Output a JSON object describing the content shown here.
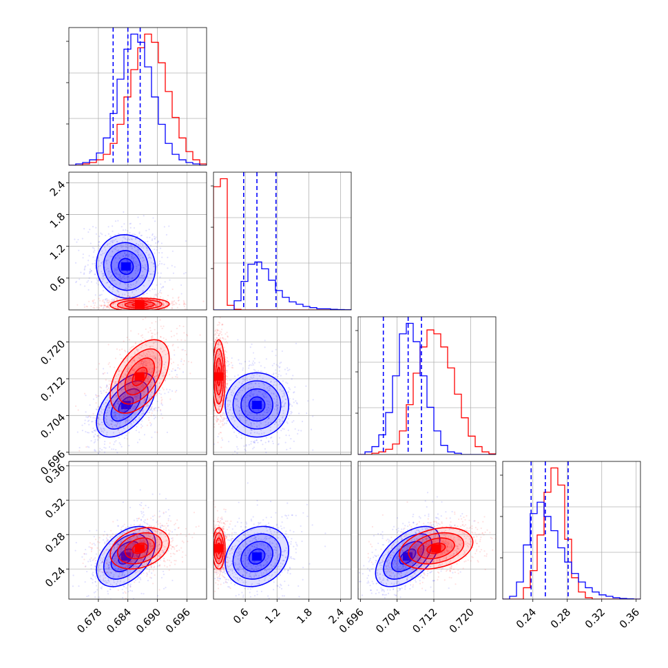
{
  "chart_data": {
    "type": "corner",
    "grid": true,
    "parameters": [
      {
        "index": 0,
        "range": [
          0.672,
          0.7
        ],
        "ticks": [
          "0.678",
          "0.684",
          "0.690",
          "0.696"
        ],
        "tick_values": [
          0.678,
          0.684,
          0.69,
          0.696
        ]
      },
      {
        "index": 1,
        "range": [
          0.0,
          2.6
        ],
        "ticks": [
          "0.6",
          "1.2",
          "1.8",
          "2.4"
        ],
        "tick_values": [
          0.6,
          1.2,
          1.8,
          2.4
        ]
      },
      {
        "index": 2,
        "range": [
          0.6955,
          0.7255
        ],
        "ticks": [
          "0.696",
          "0.704",
          "0.712",
          "0.720"
        ],
        "tick_values": [
          0.696,
          0.704,
          0.712,
          0.72
        ]
      },
      {
        "index": 3,
        "range": [
          0.205,
          0.365
        ],
        "ticks": [
          "0.24",
          "0.28",
          "0.32",
          "0.36"
        ],
        "tick_values": [
          0.24,
          0.28,
          0.32,
          0.36
        ]
      }
    ],
    "series": [
      {
        "color": "#0000ff",
        "means": [
          0.6836,
          0.82,
          0.7063,
          0.2545
        ],
        "sigmas": [
          0.003,
          0.3,
          0.0035,
          0.0175
        ],
        "quantiles": [
          [
            0.681,
            0.684,
            0.6865
          ],
          [
            0.57,
            0.82,
            1.18
          ],
          [
            0.701,
            0.7064,
            0.7093
          ],
          [
            0.238,
            0.2545,
            0.281
          ]
        ],
        "correlations": [
          [
            0,
            1,
            -0.05
          ],
          [
            0,
            2,
            0.55
          ],
          [
            0,
            3,
            0.45
          ],
          [
            1,
            2,
            0.0
          ],
          [
            1,
            3,
            0.2
          ],
          [
            2,
            3,
            0.55
          ]
        ]
      },
      {
        "color": "#ff0000",
        "means": [
          0.6864,
          0.1,
          0.7125,
          0.264
        ],
        "sigmas": [
          0.003,
          0.06,
          0.004,
          0.012
        ],
        "quantiles": null,
        "correlations": [
          [
            0,
            1,
            0.1
          ],
          [
            0,
            2,
            0.5
          ],
          [
            0,
            3,
            0.3
          ],
          [
            1,
            2,
            0.0
          ],
          [
            1,
            3,
            0.0
          ],
          [
            2,
            3,
            0.3
          ]
        ]
      }
    ],
    "histograms": [
      {
        "param": 0,
        "edges": [
          0.672,
          0.7
        ],
        "blue": [
          0,
          1,
          2,
          4,
          9,
          20,
          38,
          63,
          85,
          96,
          90,
          72,
          50,
          30,
          16,
          8,
          4,
          2,
          1,
          0
        ],
        "red": [
          0,
          0,
          1,
          2,
          4,
          8,
          16,
          30,
          50,
          70,
          86,
          96,
          90,
          75,
          54,
          35,
          20,
          10,
          4,
          1
        ]
      },
      {
        "param": 1,
        "edges": [
          0.0,
          2.6
        ],
        "blue": [
          0,
          0,
          0,
          8,
          25,
          40,
          42,
          36,
          26,
          17,
          11,
          7,
          5,
          3,
          2,
          1,
          1,
          0.5,
          0.3,
          0.1
        ],
        "red": [
          108,
          115,
          4,
          0.5,
          0,
          0,
          0,
          0,
          0,
          0,
          0,
          0,
          0,
          0,
          0,
          0,
          0,
          0,
          0,
          0
        ]
      },
      {
        "param": 2,
        "edges": [
          0.6955,
          0.7255
        ],
        "blue": [
          0,
          2,
          6,
          15,
          32,
          60,
          92,
          100,
          86,
          60,
          36,
          18,
          7,
          2,
          1,
          0,
          0,
          0,
          0,
          0
        ],
        "red": [
          0,
          0,
          1,
          2,
          4,
          8,
          18,
          38,
          62,
          82,
          95,
          92,
          82,
          66,
          46,
          28,
          14,
          6,
          2,
          0.5
        ]
      },
      {
        "param": 3,
        "edges": [
          0.205,
          0.365
        ],
        "blue": [
          0,
          2,
          12,
          38,
          60,
          68,
          58,
          48,
          36,
          26,
          18,
          12,
          8,
          5,
          3,
          2,
          1,
          0.5,
          0.2,
          0
        ],
        "red": [
          0,
          0,
          0,
          8,
          20,
          45,
          75,
          92,
          80,
          42,
          15,
          5,
          1,
          0,
          0,
          0,
          0,
          0,
          0,
          0
        ]
      }
    ]
  }
}
